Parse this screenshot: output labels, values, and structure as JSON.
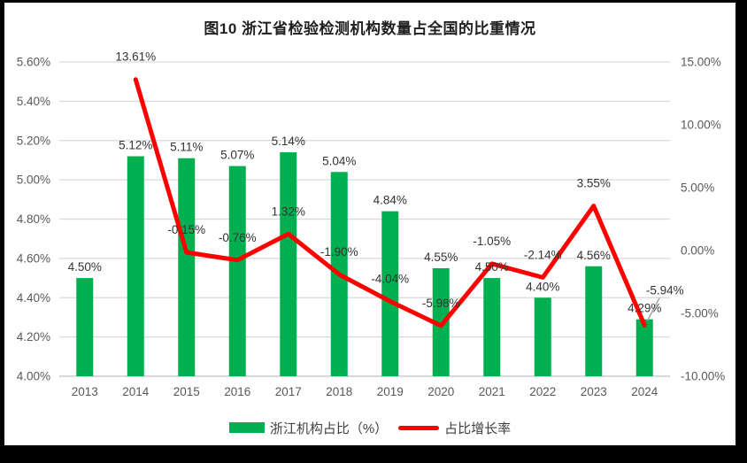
{
  "title": "图10  浙江省检验检测机构数量占全国的比重情况",
  "legend": {
    "items": [
      {
        "label": "浙江机构占比（%）",
        "type": "bar",
        "color": "#00B050"
      },
      {
        "label": "占比增长率",
        "type": "line",
        "color": "#FF0000"
      }
    ]
  },
  "chart_data": {
    "type": "bar+line",
    "title": "图10  浙江省检验检测机构数量占全国的比重情况",
    "categories": [
      "2013",
      "2014",
      "2015",
      "2016",
      "2017",
      "2018",
      "2019",
      "2020",
      "2021",
      "2022",
      "2023",
      "2024"
    ],
    "series": [
      {
        "name": "浙江机构占比（%）",
        "type": "bar",
        "axis": "left",
        "color": "#00B050",
        "values": [
          4.5,
          5.12,
          5.11,
          5.07,
          5.14,
          5.04,
          4.84,
          4.55,
          4.5,
          4.4,
          4.56,
          4.29
        ],
        "labels": [
          "4.50%",
          "5.12%",
          "5.11%",
          "5.07%",
          "5.14%",
          "5.04%",
          "4.84%",
          "4.55%",
          "4.50%",
          "4.40%",
          "4.56%",
          "4.29%"
        ]
      },
      {
        "name": "占比增长率",
        "type": "line",
        "axis": "right",
        "color": "#FF0000",
        "values": [
          null,
          13.61,
          -0.15,
          -0.76,
          1.32,
          -1.9,
          -4.04,
          -5.98,
          -1.05,
          -2.14,
          3.55,
          -5.94
        ],
        "labels": [
          null,
          "13.61%",
          "-0.15%",
          "-0.76%",
          "1.32%",
          "-1.90%",
          "-4.04%",
          "-5.98%",
          "-1.05%",
          "-2.14%",
          "3.55%",
          "-5.94%"
        ],
        "label_offsets": {
          "11": [
            23,
            -35
          ]
        },
        "leader_line_on_last_point": true
      }
    ],
    "left_axis": {
      "min": 4.0,
      "max": 5.6,
      "step": 0.2,
      "tick_labels": [
        "5.60%",
        "5.40%",
        "5.20%",
        "5.00%",
        "4.80%",
        "4.60%",
        "4.40%",
        "4.20%",
        "4.00%"
      ]
    },
    "right_axis": {
      "min": -10,
      "max": 15,
      "step": 5,
      "tick_labels": [
        "15.00%",
        "10.00%",
        "5.00%",
        "0.00%",
        "-5.00%",
        "-10.00%"
      ]
    },
    "grid": "horizontal",
    "legend_position": "bottom",
    "grid_color": "#D9D9D9",
    "axis_line_color": "#BFBFBF",
    "leader_line_color": "#A6A6A6"
  }
}
